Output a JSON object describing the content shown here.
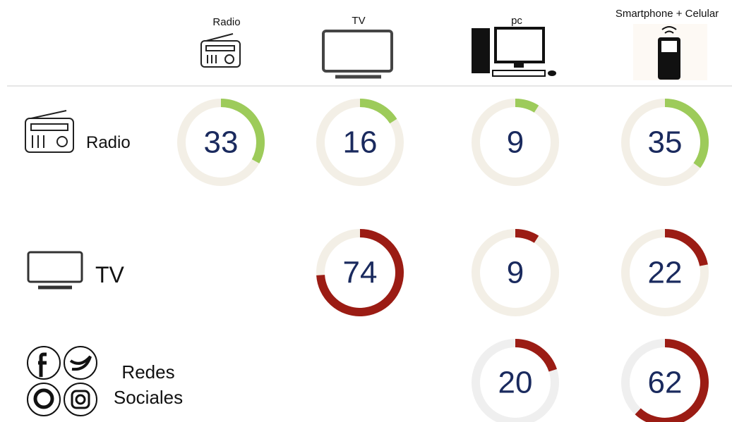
{
  "chart_data": {
    "type": "donut",
    "columns": [
      "Radio",
      "TV",
      "pc",
      "Smartphone + Celular"
    ],
    "max": 100,
    "rows": [
      {
        "name": "Radio",
        "color": "#9dcb5a",
        "track": "#f3efe6",
        "values": [
          33,
          16,
          9,
          35
        ]
      },
      {
        "name": "TV",
        "color": "#9b1c14",
        "track": "#f3efe6",
        "values": [
          null,
          74,
          9,
          22
        ]
      },
      {
        "name": "Redes Sociales",
        "color": "#9b1c14",
        "track": "#efefef",
        "values": [
          null,
          null,
          20,
          62
        ]
      }
    ]
  }
}
